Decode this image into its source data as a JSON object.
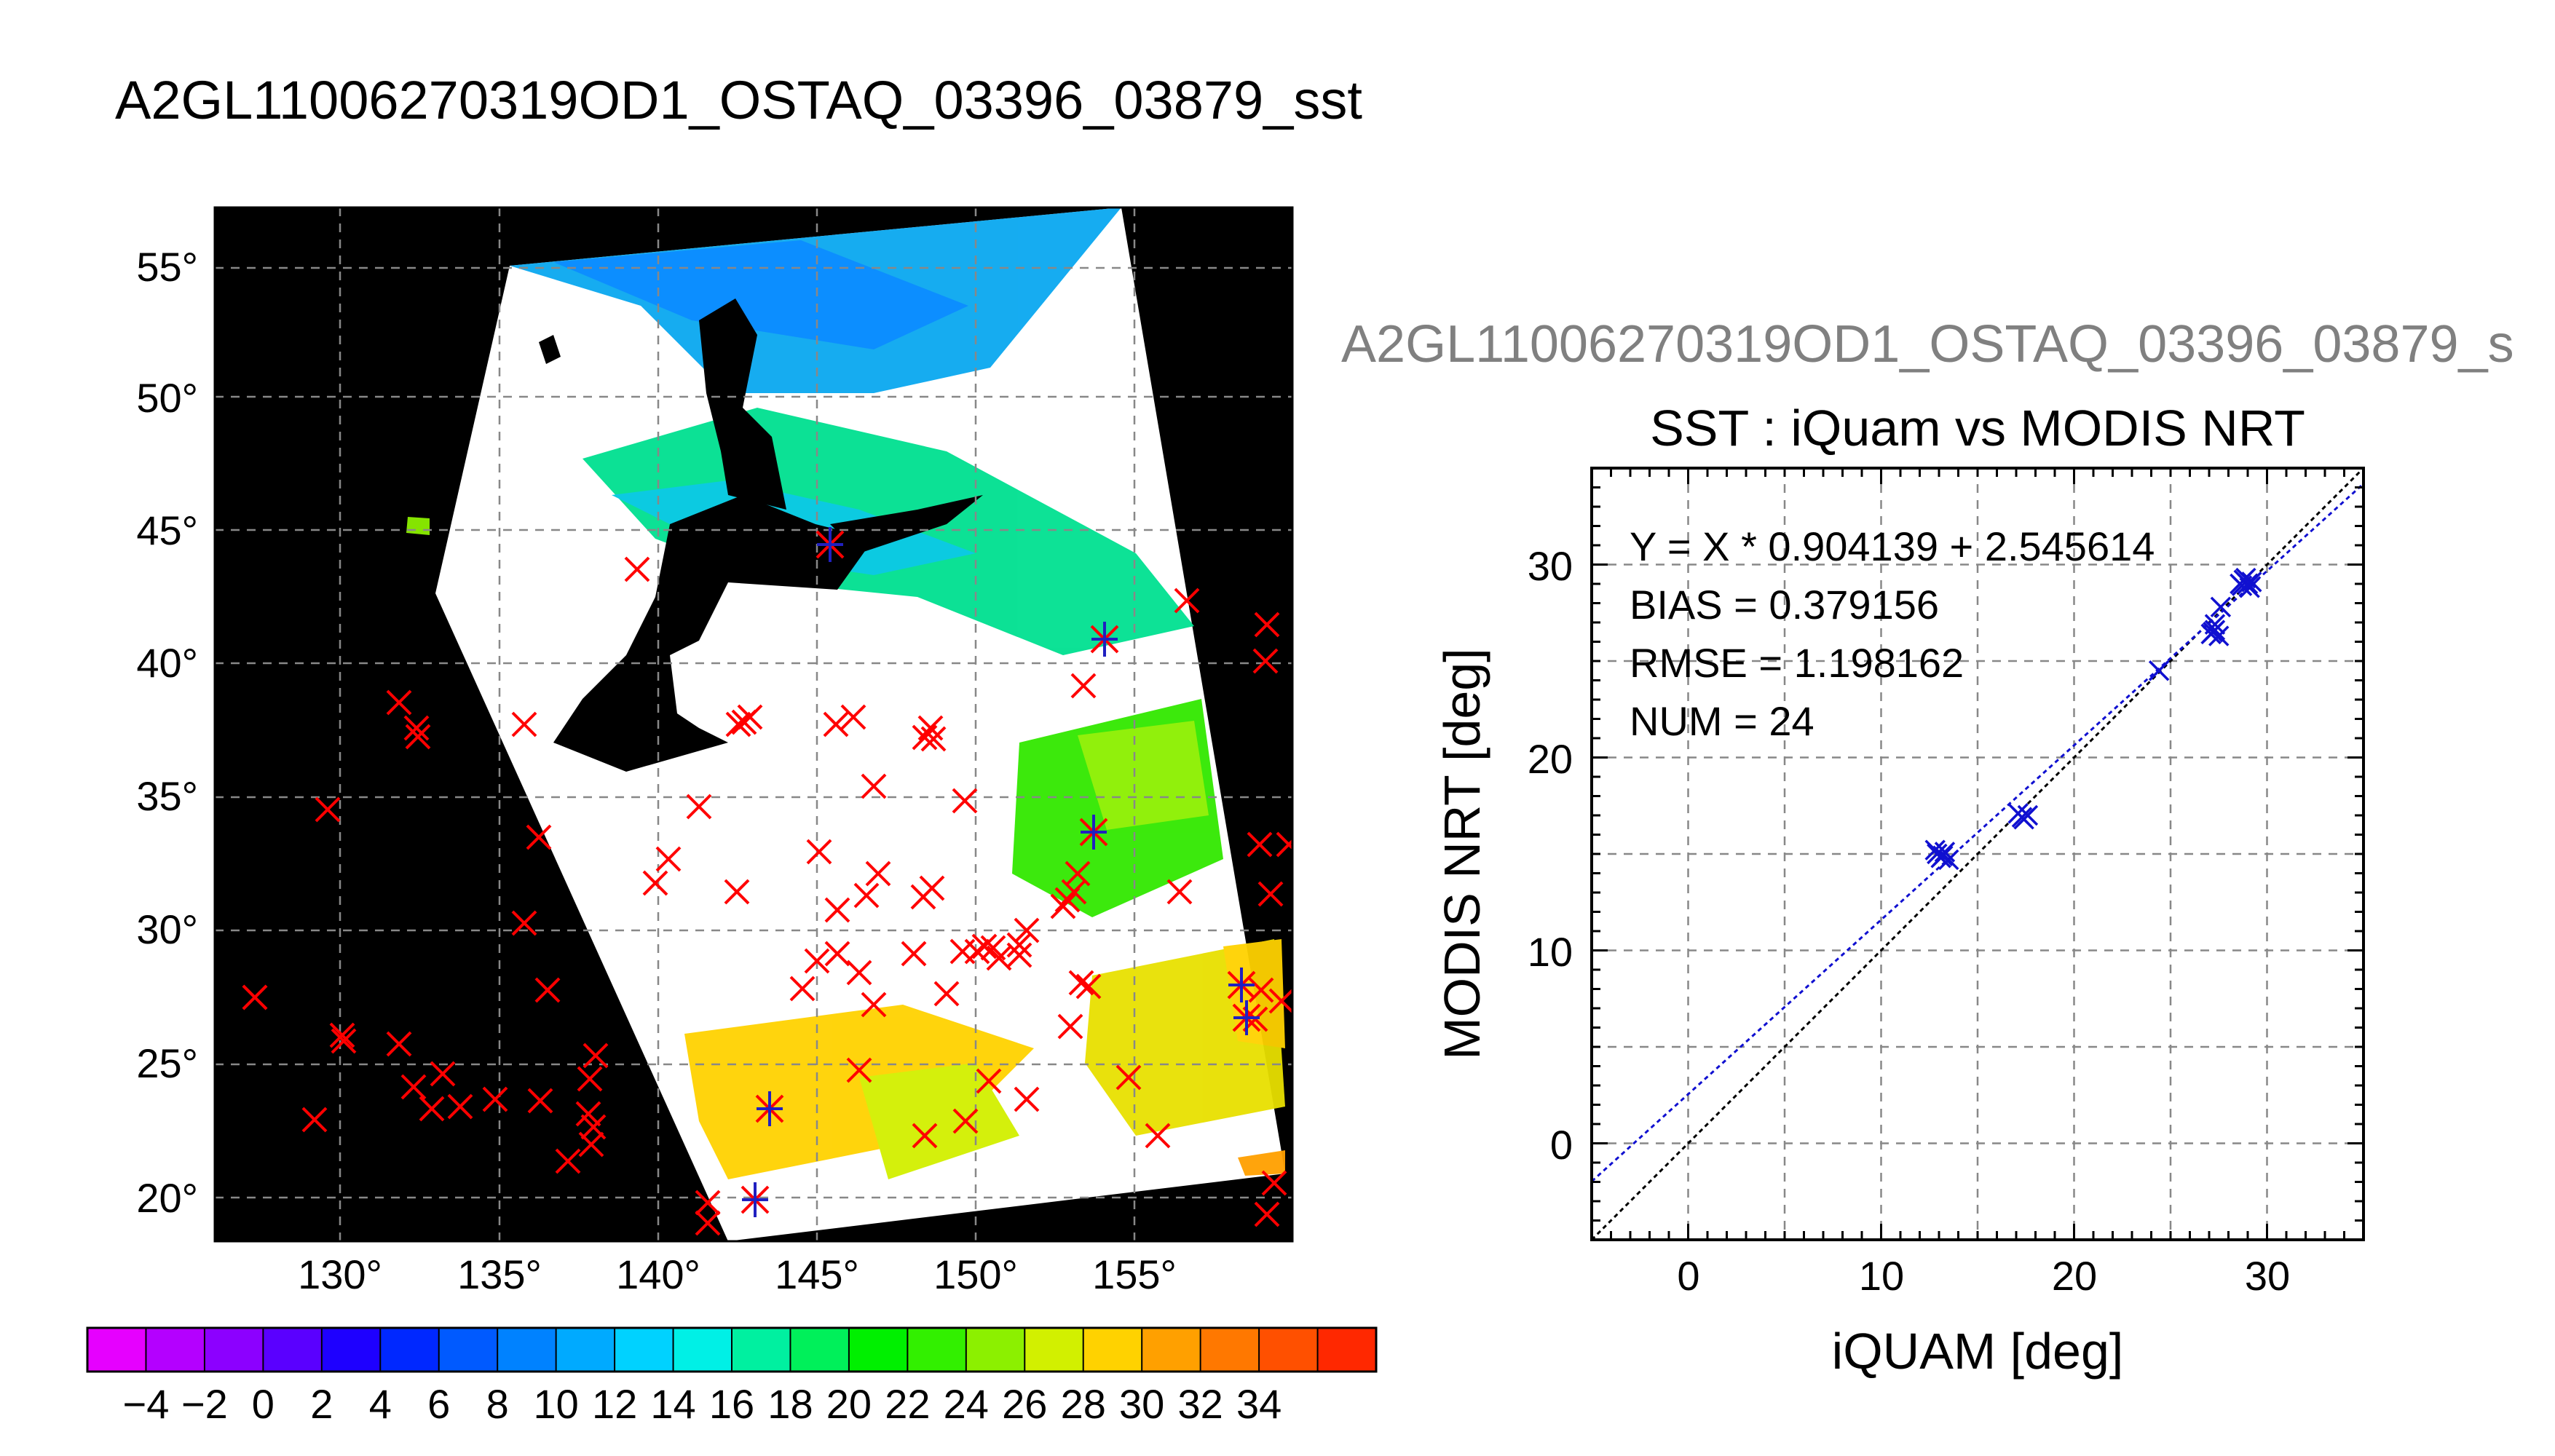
{
  "file_title": "A2GL11006270319OD1_OSTAQ_03396_03879_sst",
  "map": {
    "lat_labels": [
      "55°",
      "50°",
      "45°",
      "40°",
      "35°",
      "30°",
      "25°",
      "20°"
    ],
    "lon_labels": [
      "130°",
      "135°",
      "140°",
      "145°",
      "150°",
      "155°"
    ],
    "background_color": "#000000",
    "cloud_color": "#ffffff",
    "marker_color": "#ff0000",
    "match_marker_color": "#2020c0"
  },
  "colorbar": {
    "tick_labels": [
      "−4",
      "−2",
      "0",
      "2",
      "4",
      "6",
      "8",
      "10",
      "12",
      "14",
      "16",
      "18",
      "20",
      "22",
      "24",
      "26",
      "28",
      "30",
      "32",
      "34"
    ],
    "colors": [
      "#e600ff",
      "#b400ff",
      "#8c00ff",
      "#5a00ff",
      "#1e00ff",
      "#0028ff",
      "#005aff",
      "#0082ff",
      "#00aaff",
      "#00d2ff",
      "#00f0e6",
      "#00f0a0",
      "#00f05a",
      "#00f000",
      "#32f000",
      "#8cf000",
      "#d2f000",
      "#ffd200",
      "#ffa000",
      "#ff7800",
      "#ff5000",
      "#ff2800"
    ]
  },
  "scatter": {
    "file_title_visible": "A2GL11006270319OD1_OSTAQ_03396_03879_s",
    "title": "SST : iQuam vs MODIS NRT",
    "stats": [
      "Y = X * 0.904139 + 2.545614",
      "BIAS = 0.379156",
      "RMSE = 1.198162",
      "NUM = 24"
    ],
    "x_ticks": [
      "0",
      "10",
      "20",
      "30"
    ],
    "y_ticks": [
      "0",
      "10",
      "20",
      "30"
    ]
  },
  "chart_data": {
    "type": "scatter",
    "title": "SST : iQuam vs MODIS NRT",
    "xlabel": "iQUAM [deg]",
    "ylabel": "MODIS NRT [deg]",
    "xlim": [
      -5,
      35
    ],
    "ylim": [
      -5,
      35
    ],
    "grid": true,
    "x": [
      12.9,
      13.1,
      13.3,
      13.5,
      13.2,
      17.1,
      17.3,
      17.6,
      24.4,
      27.1,
      27.3,
      27.5,
      27.3,
      27.6,
      28.6,
      28.9,
      29.1,
      28.8,
      29.0,
      28.7,
      12.8,
      17.4,
      27.2,
      29.2
    ],
    "y": [
      15.0,
      14.8,
      15.1,
      14.7,
      14.9,
      17.1,
      16.9,
      17.0,
      24.5,
      26.4,
      26.6,
      26.3,
      26.9,
      27.8,
      29.0,
      29.3,
      28.8,
      29.2,
      29.0,
      28.9,
      15.2,
      16.8,
      26.5,
      29.1
    ],
    "regression_line": {
      "slope": 0.904139,
      "intercept": 2.545614
    },
    "identity_line": {
      "slope": 1,
      "intercept": 0
    }
  }
}
